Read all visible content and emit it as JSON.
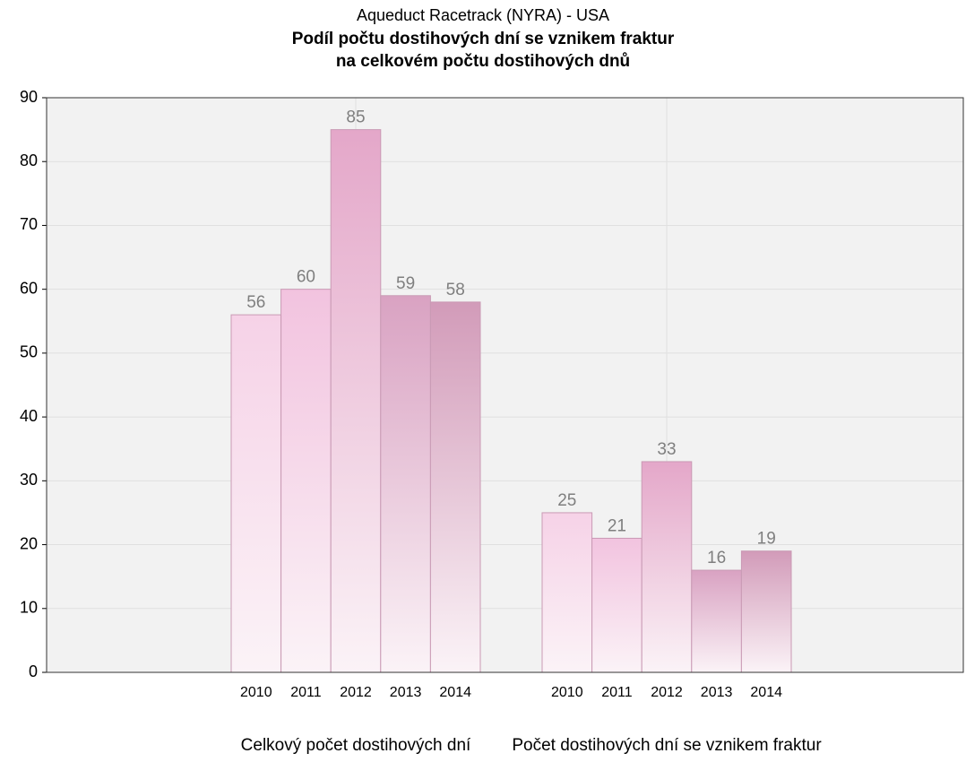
{
  "chart_data": {
    "type": "bar",
    "subtitle": "Aqueduct Racetrack (NYRA) - USA",
    "title_lines": [
      "Podíl počtu dostihových dní se vznikem fraktur",
      "na celkovém počtu dostihových dnů"
    ],
    "categories": [
      "Celkový počet dostihových dní",
      "Počet dostihových dní se vznikem fraktur"
    ],
    "series": [
      {
        "name": "2010",
        "color": "#f6d2e7",
        "values": [
          56,
          25
        ]
      },
      {
        "name": "2011",
        "color": "#f2c3df",
        "values": [
          60,
          21
        ]
      },
      {
        "name": "2012",
        "color": "#e4a7c9",
        "values": [
          85,
          33
        ]
      },
      {
        "name": "2013",
        "color": "#d9a2c2",
        "values": [
          59,
          16
        ]
      },
      {
        "name": "2014",
        "color": "#d29bb9",
        "values": [
          58,
          19
        ]
      }
    ],
    "ylim": [
      0,
      90
    ],
    "yticks": [
      0,
      10,
      20,
      30,
      40,
      50,
      60,
      70,
      80,
      90
    ],
    "grid": true
  }
}
